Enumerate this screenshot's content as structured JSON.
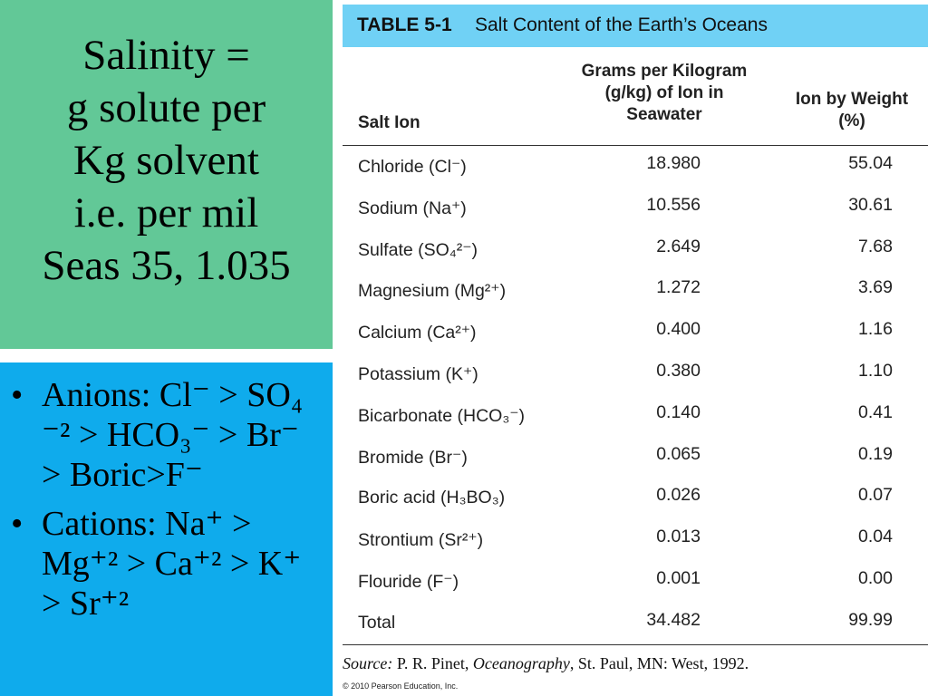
{
  "left_box": {
    "lines": [
      "Salinity =",
      "g solute per",
      "Kg solvent",
      "i.e. per mil",
      "Seas 35, 1.035"
    ]
  },
  "bullets": [
    "Anions: Cl⁻ > SO₄ ⁻² > HCO₃⁻ > Br⁻ > Boric>F⁻",
    "Cations: Na⁺ > Mg⁺² > Ca⁺² > K⁺ > Sr⁺²"
  ],
  "bullet_symbol": "•",
  "table": {
    "number": "TABLE 5-1",
    "title": "Salt Content of the Earth’s Oceans",
    "headers": [
      "Salt Ion",
      "Grams per Kilogram (g/kg) of Ion in Seawater",
      "Ion by Weight (%)"
    ],
    "rows": [
      [
        "Chloride (Cl⁻)",
        "18.980",
        "55.04"
      ],
      [
        "Sodium (Na⁺)",
        "10.556",
        "30.61"
      ],
      [
        "Sulfate (SO₄²⁻)",
        "2.649",
        "7.68"
      ],
      [
        "Magnesium (Mg²⁺)",
        "1.272",
        "3.69"
      ],
      [
        "Calcium (Ca²⁺)",
        "0.400",
        "1.16"
      ],
      [
        "Potassium (K⁺)",
        "0.380",
        "1.10"
      ],
      [
        "Bicarbonate (HCO₃⁻)",
        "0.140",
        "0.41"
      ],
      [
        "Bromide (Br⁻)",
        "0.065",
        "0.19"
      ],
      [
        "Boric acid (H₃BO₃)",
        "0.026",
        "0.07"
      ],
      [
        "Strontium (Sr²⁺)",
        "0.013",
        "0.04"
      ],
      [
        "Flouride (F⁻)",
        "0.001",
        "0.00"
      ],
      [
        "Total",
        "34.482",
        "99.99"
      ]
    ]
  },
  "source": [
    "Source:",
    "P. R. Pinet,",
    "Oceanography",
    ", St. Paul, MN: West, 1992."
  ],
  "copyright": "© 2010 Pearson Education, Inc."
}
